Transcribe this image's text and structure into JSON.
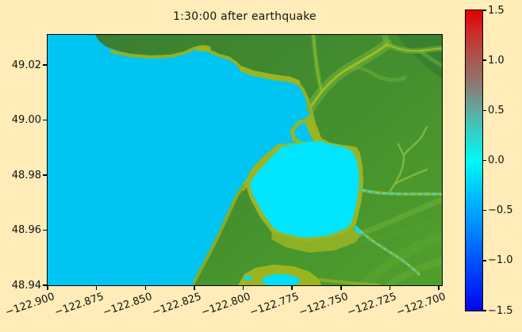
{
  "figure": {
    "title": "1:30:00 after earthquake",
    "background_color": "#ffecb8"
  },
  "chart_data": {
    "type": "heatmap",
    "title": "1:30:00 after earthquake",
    "x_tick_labels": [
      "−122.900",
      "−122.875",
      "−122.850",
      "−122.825",
      "−122.800",
      "−122.775",
      "−122.750",
      "−122.725",
      "−122.700"
    ],
    "x_tick_values": [
      -122.9,
      -122.875,
      -122.85,
      -122.825,
      -122.8,
      -122.775,
      -122.75,
      -122.725,
      -122.7
    ],
    "y_tick_labels": [
      "49.02",
      "49.00",
      "48.98",
      "48.96",
      "48.94"
    ],
    "y_tick_values": [
      49.02,
      49.0,
      48.98,
      48.96,
      48.94
    ],
    "x_range": [
      -122.906,
      -122.698
    ],
    "y_range": [
      48.94,
      49.031
    ],
    "grid": false,
    "colorbar": {
      "position": "right",
      "range": [
        -1.5,
        1.5
      ],
      "tick_labels": [
        "1.5",
        "1.0",
        "0.5",
        "0.0",
        "−0.5",
        "−1.0",
        "−1.5"
      ],
      "tick_values": [
        1.5,
        1.0,
        0.5,
        0.0,
        -0.5,
        -1.0,
        -1.5
      ],
      "colors_top_to_bottom": [
        "#e20000",
        "#8a7a74",
        "#00fafa",
        "#00a4fe",
        "#0505e8"
      ]
    },
    "regions": [
      {
        "name": "open-water-strait",
        "color": "#00c5f3"
      },
      {
        "name": "shallow-bay",
        "color": "#00e5ff"
      },
      {
        "name": "shoreline-lowland",
        "color": "#9cb51e"
      },
      {
        "name": "upland-land",
        "color": "#3c8133"
      },
      {
        "name": "river-valleys",
        "color": "#6eb23a"
      }
    ]
  }
}
